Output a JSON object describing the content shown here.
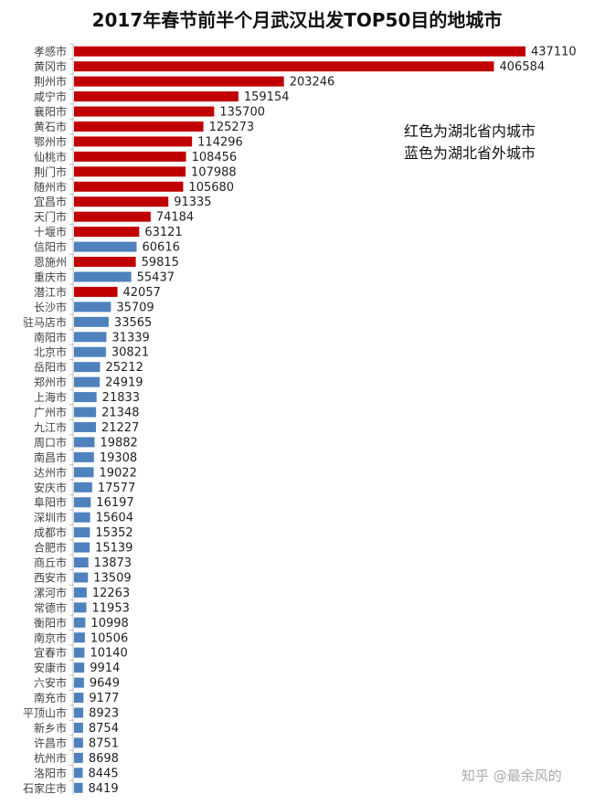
{
  "chart_data": {
    "type": "bar",
    "orientation": "horizontal",
    "title": "2017年春节前半个月武汉出发TOP50目的地城市",
    "legend": [
      "红色为湖北省内城市",
      "蓝色为湖北省外城市"
    ],
    "colors": {
      "inside_hubei": "#c00000",
      "outside_hubei": "#4f81bd"
    },
    "grid": false,
    "categories": [
      "孝感市",
      "黄冈市",
      "荆州市",
      "咸宁市",
      "襄阳市",
      "黄石市",
      "鄂州市",
      "仙桃市",
      "荆门市",
      "随州市",
      "宜昌市",
      "天门市",
      "十堰市",
      "信阳市",
      "恩施州",
      "重庆市",
      "潜江市",
      "长沙市",
      "驻马店市",
      "南阳市",
      "北京市",
      "岳阳市",
      "郑州市",
      "上海市",
      "广州市",
      "九江市",
      "周口市",
      "南昌市",
      "达州市",
      "安庆市",
      "阜阳市",
      "深圳市",
      "成都市",
      "合肥市",
      "商丘市",
      "西安市",
      "漯河市",
      "常德市",
      "衡阳市",
      "南京市",
      "宜春市",
      "安康市",
      "六安市",
      "南充市",
      "平顶山市",
      "新乡市",
      "许昌市",
      "杭州市",
      "洛阳市",
      "石家庄市"
    ],
    "values": [
      437110,
      406584,
      203246,
      159154,
      135700,
      125273,
      114296,
      108456,
      107988,
      105680,
      91335,
      74184,
      63121,
      60616,
      59815,
      55437,
      42057,
      35709,
      33565,
      31339,
      30821,
      25212,
      24919,
      21833,
      21348,
      21227,
      19882,
      19308,
      19022,
      17577,
      16197,
      15604,
      15352,
      15139,
      13873,
      13509,
      12263,
      11953,
      10998,
      10506,
      10140,
      9914,
      9649,
      9177,
      8923,
      8754,
      8751,
      8698,
      8445,
      8419
    ],
    "in_hubei": [
      true,
      true,
      true,
      true,
      true,
      true,
      true,
      true,
      true,
      true,
      true,
      true,
      true,
      false,
      true,
      false,
      true,
      false,
      false,
      false,
      false,
      false,
      false,
      false,
      false,
      false,
      false,
      false,
      false,
      false,
      false,
      false,
      false,
      false,
      false,
      false,
      false,
      false,
      false,
      false,
      false,
      false,
      false,
      false,
      false,
      false,
      false,
      false,
      false,
      false
    ]
  },
  "watermark": "知乎 @最余风的"
}
